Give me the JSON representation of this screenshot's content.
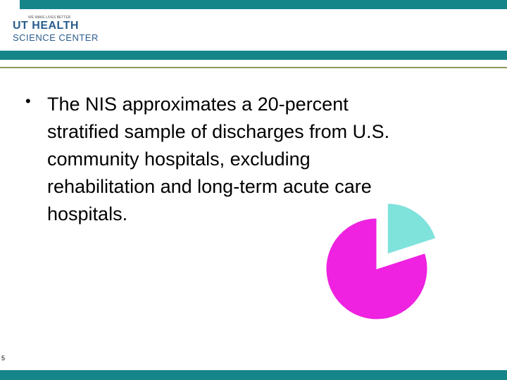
{
  "header": {
    "tagline": "WE MAKE LIVES BETTER",
    "logo_line1": "UT HEALTH",
    "logo_line2": "SCIENCE CENTER"
  },
  "bullet": {
    "lines": [
      "The NIS approximates a 20-percent",
      "stratified sample of discharges from U.S.",
      "community hospitals, excluding",
      "rehabilitation and long-term acute care",
      "hospitals."
    ]
  },
  "chart_data": {
    "type": "pie",
    "values": [
      20,
      80
    ],
    "colors": [
      "#7fe3dc",
      "#ee22e0"
    ],
    "exploded": [
      true,
      false
    ]
  },
  "footer": {
    "slide_number": "5"
  }
}
